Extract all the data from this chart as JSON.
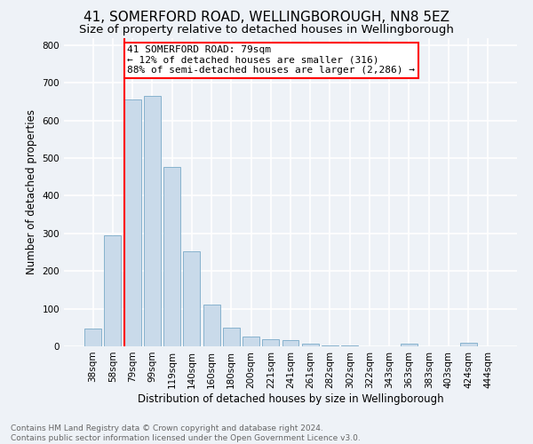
{
  "title": "41, SOMERFORD ROAD, WELLINGBOROUGH, NN8 5EZ",
  "subtitle": "Size of property relative to detached houses in Wellingborough",
  "xlabel": "Distribution of detached houses by size in Wellingborough",
  "ylabel": "Number of detached properties",
  "footer1": "Contains HM Land Registry data © Crown copyright and database right 2024.",
  "footer2": "Contains public sector information licensed under the Open Government Licence v3.0.",
  "categories": [
    "38sqm",
    "58sqm",
    "79sqm",
    "99sqm",
    "119sqm",
    "140sqm",
    "160sqm",
    "180sqm",
    "200sqm",
    "221sqm",
    "241sqm",
    "261sqm",
    "282sqm",
    "302sqm",
    "322sqm",
    "343sqm",
    "363sqm",
    "383sqm",
    "403sqm",
    "424sqm",
    "444sqm"
  ],
  "values": [
    47,
    295,
    655,
    665,
    477,
    252,
    112,
    50,
    27,
    18,
    17,
    7,
    2,
    3,
    1,
    0,
    8,
    1,
    1,
    9,
    0
  ],
  "bar_color": "#c9daea",
  "bar_edge_color": "#7aaac8",
  "vline_color": "red",
  "annotation_line1": "41 SOMERFORD ROAD: 79sqm",
  "annotation_line2": "← 12% of detached houses are smaller (316)",
  "annotation_line3": "88% of semi-detached houses are larger (2,286) →",
  "annotation_box_color": "white",
  "annotation_box_edge_color": "red",
  "ylim": [
    0,
    820
  ],
  "yticks": [
    0,
    100,
    200,
    300,
    400,
    500,
    600,
    700,
    800
  ],
  "bg_color": "#eef2f7",
  "grid_color": "white",
  "title_fontsize": 11,
  "subtitle_fontsize": 9.5,
  "axis_label_fontsize": 8.5,
  "tick_fontsize": 7.5,
  "annotation_fontsize": 8,
  "footer_fontsize": 6.5
}
